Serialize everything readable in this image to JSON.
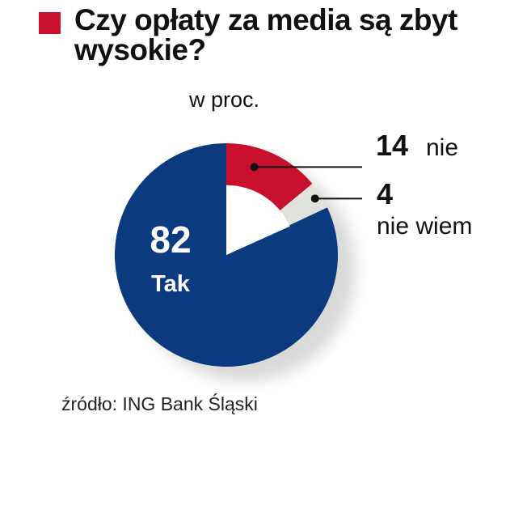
{
  "colors": {
    "accent": "#c8102e",
    "yes": "#0b3a7e",
    "no": "#c8102e",
    "dontknow": "#e2e2dc",
    "shadow": "#d9d9d9"
  },
  "header": {
    "title": "Czy opłaty za media są zbyt wysokie?",
    "unit": "w proc."
  },
  "chart_data": {
    "type": "pie",
    "title": "Czy opłaty za media są zbyt wysokie?",
    "unit": "w proc.",
    "slices": [
      {
        "label": "nie",
        "value": 14
      },
      {
        "label": "nie wiem",
        "value": 4
      },
      {
        "label": "Tak",
        "value": 82
      }
    ]
  },
  "footer": {
    "source": "źródło: ING Bank Śląski"
  }
}
